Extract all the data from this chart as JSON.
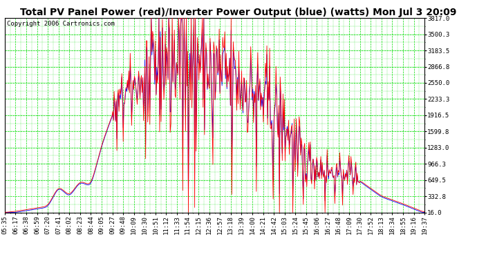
{
  "title": "Total PV Panel Power (red)/Inverter Power Output (blue) (watts) Mon Jul 3 20:09",
  "copyright": "Copyright 2006 Cartronics.com",
  "yticks": [
    16.0,
    332.8,
    649.5,
    966.3,
    1283.0,
    1599.8,
    1916.5,
    2233.3,
    2550.0,
    2866.8,
    3183.5,
    3500.3,
    3817.0
  ],
  "ylim": [
    16.0,
    3817.0
  ],
  "x_labels": [
    "05:35",
    "06:17",
    "06:38",
    "06:59",
    "07:20",
    "07:41",
    "08:02",
    "08:23",
    "08:44",
    "09:05",
    "09:27",
    "09:48",
    "10:09",
    "10:30",
    "10:51",
    "11:12",
    "11:33",
    "11:54",
    "12:15",
    "12:36",
    "12:57",
    "13:18",
    "13:39",
    "14:00",
    "14:21",
    "14:42",
    "15:03",
    "15:24",
    "15:45",
    "16:06",
    "16:27",
    "16:48",
    "17:09",
    "17:30",
    "17:52",
    "18:13",
    "18:34",
    "18:55",
    "19:16",
    "19:37"
  ],
  "bg_color": "#ffffff",
  "plot_bg_color": "#ffffff",
  "grid_color": "#00dd00",
  "line_color_red": "#ff0000",
  "line_color_blue": "#0000ff",
  "title_fontsize": 10,
  "tick_fontsize": 6.5,
  "copyright_fontsize": 6.5
}
